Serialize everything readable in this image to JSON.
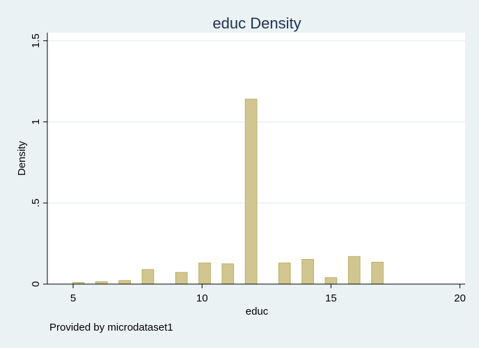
{
  "chart_data": {
    "type": "bar",
    "title": "educ Density",
    "xlabel": "educ",
    "ylabel": "Density",
    "note": "Provided by microdataset1",
    "xlim": [
      4.0,
      20.2
    ],
    "ylim": [
      0,
      1.55
    ],
    "x_ticks": [
      5,
      10,
      15,
      20
    ],
    "y_ticks": [
      0,
      0.5,
      1,
      1.5
    ],
    "y_tick_labels": [
      "0",
      ".5",
      "1",
      "1.5"
    ],
    "grid": true,
    "bar_width": 0.45,
    "colors": {
      "background": "#eaf2f3",
      "plot_background": "#ffffff",
      "bar_fill": "#d1c78e",
      "bar_stroke": "#b9ad6a",
      "gridline": "#e8eef0",
      "title": "#1e2f5a"
    },
    "x": [
      5.2,
      6.1,
      7.0,
      7.9,
      9.2,
      10.1,
      11.0,
      11.9,
      13.2,
      14.1,
      15.0,
      15.9,
      16.8
    ],
    "values": [
      0.01,
      0.015,
      0.022,
      0.09,
      0.072,
      0.13,
      0.125,
      1.14,
      0.13,
      0.152,
      0.04,
      0.17,
      0.135
    ]
  }
}
